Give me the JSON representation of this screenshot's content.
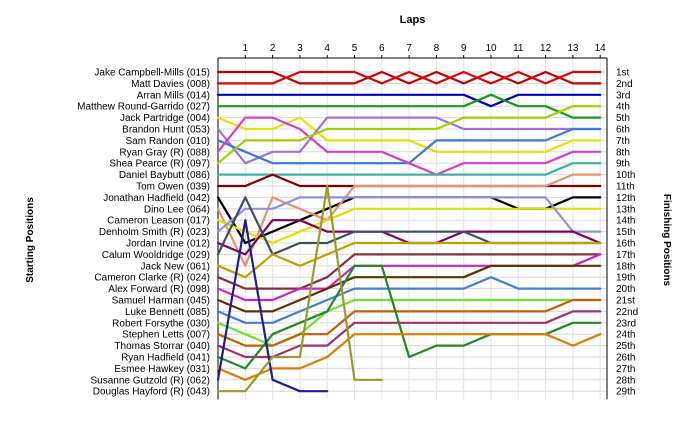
{
  "chart_data": {
    "type": "line",
    "xlabel": "Laps",
    "ylabel_left": "Starting Positions",
    "ylabel_right": "Finishing Positions",
    "laps": [
      1,
      2,
      3,
      4,
      5,
      6,
      7,
      8,
      9,
      10,
      11,
      12,
      13,
      14
    ],
    "drivers": [
      "Jake Campbell-Mills (015)",
      "Matt Davies (008)",
      "Arran Mills (014)",
      "Matthew Round-Garrido (027)",
      "Jack Partridge (004)",
      "Brandon Hunt (053)",
      "Sam Randon (010)",
      "Ryan Gray  (R) (088)",
      "Shea Pearce (R) (097)",
      "Daniel Baybutt (086)",
      "Tom Owen (039)",
      "Jonathan Hadfield (042)",
      "Dino Lee (064)",
      "Cameron Leason (017)",
      "Denholm Smith  (R) (023)",
      "Jordan Irvine (012)",
      "Calum Wooldridge (029)",
      "Jack New (061)",
      "Cameron Clarke  (R) (024)",
      "Alex Forward  (R) (098)",
      "Samuel Harman (045)",
      "Luke Bennett (085)",
      "Robert Forsythe (030)",
      "Stephen Letts (007)",
      "Thomas Storrar (040)",
      "Ryan Hadfield (041)",
      "Esmee Hawkey (031)",
      "Susanne Gutzold  (R) (062)",
      "Douglas Hayford  (R) (043)"
    ],
    "finishing_labels": [
      "1st",
      "2nd",
      "3rd",
      "4th",
      "5th",
      "6th",
      "7th",
      "8th",
      "9th",
      "10th",
      "11th",
      "12th",
      "13th",
      "14th",
      "15th",
      "16th",
      "17th",
      "18th",
      "19th",
      "20th",
      "21st",
      "22nd",
      "23rd",
      "24th",
      "25th",
      "26th",
      "27th",
      "28th",
      "29th"
    ],
    "series": [
      {
        "color": "#c00000",
        "positions": [
          1,
          1,
          2,
          2,
          2,
          1,
          2,
          1,
          2,
          1,
          2,
          1,
          2,
          2
        ]
      },
      {
        "color": "#e00000",
        "positions": [
          2,
          2,
          1,
          1,
          1,
          2,
          1,
          2,
          1,
          2,
          1,
          2,
          1,
          1
        ]
      },
      {
        "color": "#0000c0",
        "positions": [
          3,
          3,
          3,
          3,
          3,
          3,
          3,
          3,
          3,
          4,
          3,
          3,
          3,
          3
        ]
      },
      {
        "color": "#1a9a1a",
        "positions": [
          4,
          4,
          4,
          4,
          4,
          4,
          4,
          4,
          4,
          3,
          4,
          4,
          5,
          5
        ]
      },
      {
        "color": "#e8e000",
        "positions": [
          6,
          6,
          5,
          7,
          7,
          7,
          7,
          8,
          8,
          8,
          8,
          8,
          7,
          7
        ]
      },
      {
        "color": "#a070e0",
        "positions": [
          9,
          8,
          8,
          5,
          5,
          5,
          5,
          5,
          6,
          6,
          6,
          6,
          6,
          6
        ]
      },
      {
        "color": "#3a78d8",
        "positions": [
          8,
          9,
          9,
          9,
          9,
          9,
          9,
          7,
          7,
          7,
          7,
          7,
          6,
          6
        ]
      },
      {
        "color": "#d040d0",
        "positions": [
          5,
          5,
          6,
          8,
          8,
          8,
          9,
          10,
          9,
          9,
          9,
          9,
          8,
          8
        ]
      },
      {
        "color": "#a0d000",
        "positions": [
          7,
          7,
          7,
          6,
          6,
          6,
          6,
          6,
          5,
          5,
          5,
          5,
          4,
          4
        ]
      },
      {
        "color": "#40b0a0",
        "positions": [
          10,
          10,
          10,
          10,
          10,
          10,
          10,
          10,
          10,
          10,
          10,
          10,
          9,
          9
        ]
      },
      {
        "color": "#800000",
        "positions": [
          11,
          10,
          11,
          11,
          11,
          11,
          11,
          11,
          11,
          11,
          11,
          11,
          11,
          11
        ]
      },
      {
        "color": "#000000",
        "positions": [
          16,
          15,
          14,
          13,
          12,
          12,
          12,
          12,
          12,
          12,
          13,
          13,
          12,
          12
        ]
      },
      {
        "color": "#e89070",
        "positions": [
          18,
          12,
          13,
          14,
          11,
          11,
          11,
          11,
          11,
          11,
          11,
          11,
          10,
          10
        ]
      },
      {
        "color": "#e0e000",
        "positions": [
          15,
          16,
          15,
          14,
          13,
          13,
          13,
          13,
          13,
          13,
          13,
          13,
          13,
          13
        ]
      },
      {
        "color": "#9090e0",
        "positions": [
          13,
          13,
          12,
          12,
          12,
          12,
          12,
          12,
          12,
          12,
          12,
          12,
          15,
          15
        ]
      },
      {
        "color": "#800060",
        "positions": [
          17,
          14,
          14,
          15,
          15,
          15,
          16,
          16,
          15,
          15,
          15,
          15,
          15,
          16
        ]
      },
      {
        "color": "#405060",
        "positions": [
          12,
          17,
          16,
          16,
          15,
          15,
          15,
          15,
          15,
          16,
          16,
          16,
          16,
          16
        ]
      },
      {
        "color": "#c0a000",
        "positions": [
          19,
          17,
          18,
          17,
          16,
          16,
          16,
          16,
          16,
          16,
          16,
          16,
          16,
          16
        ]
      },
      {
        "color": "#803040",
        "positions": [
          20,
          20,
          20,
          19,
          17,
          17,
          17,
          17,
          17,
          17,
          17,
          17,
          17,
          17
        ]
      },
      {
        "color": "#cc22cc",
        "positions": [
          21,
          21,
          20,
          20,
          18,
          18,
          18,
          18,
          18,
          18,
          18,
          18,
          18,
          17
        ]
      },
      {
        "color": "#603000",
        "positions": [
          22,
          22,
          21,
          20,
          19,
          19,
          19,
          19,
          19,
          18,
          18,
          18,
          18,
          18
        ]
      },
      {
        "color": "#4080d0",
        "positions": [
          23,
          23,
          22,
          21,
          20,
          20,
          20,
          20,
          20,
          19,
          20,
          20,
          20,
          20
        ]
      },
      {
        "color": "#70e030",
        "positions": [
          24,
          25,
          24,
          22,
          21,
          21,
          21,
          21,
          21,
          21,
          21,
          21,
          21,
          21
        ]
      },
      {
        "color": "#c06000",
        "positions": [
          25,
          25,
          24,
          24,
          22,
          22,
          22,
          22,
          22,
          22,
          22,
          22,
          21,
          21
        ]
      },
      {
        "color": "#a03070",
        "positions": [
          26,
          26,
          25,
          25,
          23,
          23,
          23,
          23,
          23,
          23,
          23,
          23,
          22,
          22
        ]
      },
      {
        "color": "#208a20",
        "positions": [
          27,
          24,
          23,
          22,
          18,
          18,
          26,
          25,
          25,
          24,
          24,
          24,
          23,
          23
        ]
      },
      {
        "color": "#e07a00",
        "positions": [
          28,
          27,
          27,
          26,
          24,
          24,
          24,
          24,
          24,
          24,
          24,
          24,
          25,
          24
        ]
      },
      {
        "color": "#1f1f90",
        "positions": [
          14,
          28,
          29,
          29
        ]
      },
      {
        "color": "#9a9a30",
        "positions": [
          29,
          26,
          26,
          11,
          28,
          28
        ]
      }
    ]
  }
}
